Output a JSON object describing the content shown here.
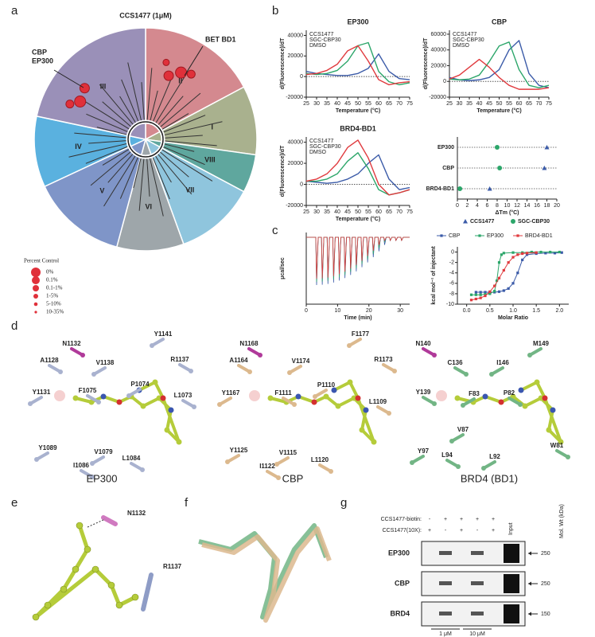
{
  "panel_labels": [
    "a",
    "b",
    "c",
    "d",
    "e",
    "f",
    "g"
  ],
  "panel_a": {
    "title": "CCS1477 (1μM)",
    "callout_left": [
      "CBP",
      "EP300"
    ],
    "callout_right": "BET BD1",
    "sectors": [
      "II",
      "I",
      "VIII",
      "VII",
      "VI",
      "V",
      "IV",
      "III"
    ],
    "legend": {
      "title": "Percent Control",
      "items": [
        "0%",
        "0.1%",
        "0.1-1%",
        "1-5%",
        "5-10%",
        "10-35%"
      ]
    }
  },
  "chart_data": [
    {
      "type": "line",
      "title": "EP300",
      "x_label": "Temperature (°C)",
      "y_label": "d(Fluorescence)/dT",
      "x": [
        25,
        30,
        35,
        40,
        45,
        50,
        55,
        60,
        65,
        70,
        75
      ],
      "series": [
        {
          "name": "CCS1477",
          "color": "#3b5ba8",
          "values": [
            5000,
            3000,
            2000,
            1000,
            1000,
            3000,
            8000,
            22000,
            5000,
            -2000,
            -3000
          ]
        },
        {
          "name": "SGC-CBP30",
          "color": "#2ca66a",
          "values": [
            3000,
            2000,
            3000,
            6000,
            15000,
            30000,
            33000,
            5000,
            -5000,
            -8000,
            -6000
          ]
        },
        {
          "name": "DMSO",
          "color": "#e03a3e",
          "values": [
            2000,
            3000,
            6000,
            12000,
            25000,
            30000,
            15000,
            -3000,
            -8000,
            -6000,
            -5000
          ]
        }
      ],
      "xlim": [
        25,
        75
      ],
      "xticks": [
        25,
        30,
        35,
        40,
        45,
        50,
        55,
        60,
        65,
        70,
        75
      ],
      "ylim": [
        -20000,
        45000
      ],
      "yticks": [
        -20000,
        0,
        20000,
        40000
      ]
    },
    {
      "type": "line",
      "title": "CBP",
      "x_label": "Temperature (°C)",
      "y_label": "d(Fluorescence)/dT",
      "x": [
        25,
        30,
        35,
        40,
        45,
        50,
        55,
        60,
        65,
        70,
        75
      ],
      "series": [
        {
          "name": "CCS1477",
          "color": "#3b5ba8",
          "values": [
            5000,
            2000,
            1000,
            2000,
            5000,
            15000,
            40000,
            52000,
            10000,
            -5000,
            -8000
          ]
        },
        {
          "name": "SGC-CBP30",
          "color": "#2ca66a",
          "values": [
            3000,
            2000,
            3000,
            8000,
            25000,
            45000,
            50000,
            15000,
            -5000,
            -8000,
            -5000
          ]
        },
        {
          "name": "DMSO",
          "color": "#e03a3e",
          "values": [
            3000,
            8000,
            18000,
            28000,
            18000,
            5000,
            -5000,
            -10000,
            -10000,
            -10000,
            -8000
          ]
        }
      ],
      "xlim": [
        25,
        75
      ],
      "xticks": [
        25,
        30,
        35,
        40,
        45,
        50,
        55,
        60,
        65,
        70,
        75
      ],
      "ylim": [
        -20000,
        65000
      ],
      "yticks": [
        -20000,
        0,
        20000,
        40000,
        60000
      ]
    },
    {
      "type": "line",
      "title": "BRD4-BD1",
      "x_label": "Temperature (°C)",
      "y_label": "d(Fluorescence)/dT",
      "x": [
        25,
        30,
        35,
        40,
        45,
        50,
        55,
        60,
        65,
        70,
        75
      ],
      "series": [
        {
          "name": "CCS1477",
          "color": "#3b5ba8",
          "values": [
            3000,
            2000,
            1000,
            2000,
            5000,
            10000,
            20000,
            28000,
            5000,
            -5000,
            -3000
          ]
        },
        {
          "name": "SGC-CBP30",
          "color": "#2ca66a",
          "values": [
            3000,
            3000,
            5000,
            10000,
            22000,
            30000,
            15000,
            -5000,
            -10000,
            -8000,
            -5000
          ]
        },
        {
          "name": "DMSO",
          "color": "#e03a3e",
          "values": [
            3000,
            5000,
            10000,
            20000,
            35000,
            42000,
            25000,
            0,
            -10000,
            -8000,
            -5000
          ]
        }
      ],
      "xlim": [
        25,
        75
      ],
      "xticks": [
        25,
        30,
        35,
        40,
        45,
        50,
        55,
        60,
        65,
        70,
        75
      ],
      "ylim": [
        -20000,
        45000
      ],
      "yticks": [
        -20000,
        0,
        20000,
        40000
      ]
    },
    {
      "type": "dot",
      "x_label": "ΔTm (°C)",
      "categories": [
        "EP300",
        "CBP",
        "BRD4-BD1"
      ],
      "series": [
        {
          "name": "CCS1477",
          "color": "#3b5ba8",
          "marker": "triangle",
          "values": [
            18,
            17.5,
            6.5
          ]
        },
        {
          "name": "SGC-CBP30",
          "color": "#2ca66a",
          "marker": "circle",
          "values": [
            8,
            8.5,
            0.5
          ]
        }
      ],
      "xlim": [
        0,
        20
      ],
      "xticks": [
        0,
        2,
        4,
        6,
        8,
        10,
        12,
        14,
        16,
        18,
        20
      ]
    },
    {
      "type": "thermogram",
      "x_label": "Time (min)",
      "y_label": "μcal/sec",
      "xlim": [
        0,
        33
      ],
      "xticks": [
        0,
        10,
        20,
        30
      ]
    },
    {
      "type": "isotherm",
      "x_label": "Molar Ratio",
      "y_label": "kcal mol⁻¹ of injectant",
      "series": [
        {
          "name": "CBP",
          "color": "#3b5ba8",
          "x": [
            0.2,
            0.3,
            0.4,
            0.5,
            0.6,
            0.7,
            0.8,
            0.9,
            1.0,
            1.1,
            1.2,
            1.3,
            1.5,
            1.7,
            1.9,
            2.05
          ],
          "values": [
            -7.7,
            -7.7,
            -7.7,
            -7.7,
            -7.7,
            -7.6,
            -7.4,
            -7.0,
            -6.0,
            -4.0,
            -1.5,
            -0.5,
            -0.3,
            -0.2,
            -0.2,
            -0.1
          ]
        },
        {
          "name": "EP300",
          "color": "#2ca66a",
          "x": [
            0.1,
            0.2,
            0.3,
            0.4,
            0.5,
            0.6,
            0.65,
            0.7,
            0.75,
            0.8,
            1.0,
            1.2,
            1.4,
            1.6,
            1.8,
            2.0
          ],
          "values": [
            -8.2,
            -8.2,
            -8.2,
            -8.1,
            -8.0,
            -7.5,
            -5.5,
            -2.0,
            -0.5,
            -0.2,
            -0.1,
            -0.1,
            0,
            0,
            0,
            0
          ]
        },
        {
          "name": "BRD4-BD1",
          "color": "#e03a3e",
          "x": [
            0.1,
            0.2,
            0.3,
            0.4,
            0.5,
            0.6,
            0.7,
            0.8,
            0.9,
            1.0,
            1.1,
            1.2,
            1.3,
            1.5
          ],
          "values": [
            -9.2,
            -9.0,
            -8.8,
            -8.4,
            -7.6,
            -6.5,
            -5.0,
            -3.5,
            -2.0,
            -1.0,
            -0.5,
            -0.3,
            -0.2,
            -0.1
          ]
        }
      ],
      "xlim": [
        -0.2,
        2.2
      ],
      "xticks": [
        {
          "value": 0,
          "label": "0.0"
        },
        0.5,
        {
          "value": 1,
          "label": "1.0"
        },
        1.5,
        {
          "value": 2,
          "label": "2.0"
        }
      ],
      "ylim": [
        -10,
        1
      ],
      "yticks": [
        -10,
        -8,
        -6,
        -4,
        -2,
        0
      ]
    }
  ],
  "panel_d": {
    "structures": [
      {
        "name": "EP300",
        "residues": [
          "N1132",
          "Y1141",
          "A1128",
          "V1138",
          "R1137",
          "Y1131",
          "F1075",
          "P1074",
          "L1073",
          "Y1089",
          "I1086",
          "V1079",
          "L1084"
        ]
      },
      {
        "name": "CBP",
        "residues": [
          "N1168",
          "F1177",
          "A1164",
          "V1174",
          "R1173",
          "Y1167",
          "F1111",
          "P1110",
          "L1109",
          "Y1125",
          "I1122",
          "V1115",
          "L1120"
        ]
      },
      {
        "name": "BRD4 (BD1)",
        "residues": [
          "N140",
          "M149",
          "C136",
          "I146",
          "Y139",
          "F83",
          "P82",
          "V87",
          "W81",
          "Y97",
          "L94",
          "L92"
        ]
      }
    ]
  },
  "panel_e": {
    "residues": [
      "N1132",
      "R1137"
    ]
  },
  "panel_g": {
    "rows": [
      {
        "label": "CCS1477-biotin:",
        "marks": [
          "-",
          "+",
          "+",
          "+",
          "+"
        ]
      },
      {
        "label": "CCS1477(10X):",
        "marks": [
          "+",
          "-",
          "+",
          "-",
          "+"
        ]
      }
    ],
    "input": "Input",
    "mw_label": "Mol. Wt (kDa)",
    "blots": [
      {
        "name": "EP300",
        "mw": 250
      },
      {
        "name": "CBP",
        "mw": 250
      },
      {
        "name": "BRD4",
        "mw": 150
      }
    ],
    "concentrations": [
      "1 μM",
      "10 μM"
    ]
  }
}
